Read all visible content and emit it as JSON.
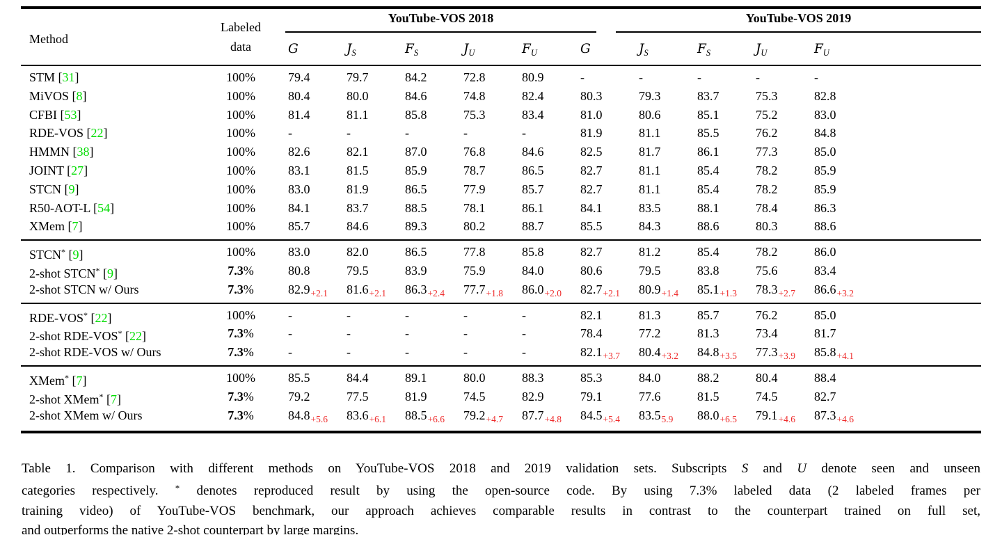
{
  "colors": {
    "citation_green": "#00dd00",
    "delta_red": "#ee2b2b"
  },
  "header": {
    "method": "Method",
    "labeled_line1": "Labeled",
    "labeled_line2": "data",
    "groups": [
      {
        "label": "YouTube-VOS 2018"
      },
      {
        "label": "YouTube-VOS 2019"
      }
    ],
    "metrics": [
      {
        "letter": "G",
        "sub": ""
      },
      {
        "letter": "J",
        "sub": "S"
      },
      {
        "letter": "F",
        "sub": "S"
      },
      {
        "letter": "J",
        "sub": "U"
      },
      {
        "letter": "F",
        "sub": "U"
      },
      {
        "letter": "G",
        "sub": ""
      },
      {
        "letter": "J",
        "sub": "S"
      },
      {
        "letter": "F",
        "sub": "S"
      },
      {
        "letter": "J",
        "sub": "U"
      },
      {
        "letter": "F",
        "sub": "U"
      }
    ]
  },
  "sections": [
    {
      "rows": [
        {
          "name": "STM",
          "star": false,
          "cite": "31",
          "labeled": "100",
          "labeled_bold": false,
          "cells": [
            "79.4",
            "79.7",
            "84.2",
            "72.8",
            "80.9",
            "-",
            "-",
            "-",
            "-",
            "-"
          ]
        },
        {
          "name": "MiVOS",
          "star": false,
          "cite": "8",
          "labeled": "100",
          "labeled_bold": false,
          "cells": [
            "80.4",
            "80.0",
            "84.6",
            "74.8",
            "82.4",
            "80.3",
            "79.3",
            "83.7",
            "75.3",
            "82.8"
          ]
        },
        {
          "name": "CFBI",
          "star": false,
          "cite": "53",
          "labeled": "100",
          "labeled_bold": false,
          "cells": [
            "81.4",
            "81.1",
            "85.8",
            "75.3",
            "83.4",
            "81.0",
            "80.6",
            "85.1",
            "75.2",
            "83.0"
          ]
        },
        {
          "name": "RDE-VOS",
          "star": false,
          "cite": "22",
          "labeled": "100",
          "labeled_bold": false,
          "cells": [
            "-",
            "-",
            "-",
            "-",
            "-",
            "81.9",
            "81.1",
            "85.5",
            "76.2",
            "84.8"
          ]
        },
        {
          "name": "HMMN",
          "star": false,
          "cite": "38",
          "labeled": "100",
          "labeled_bold": false,
          "cells": [
            "82.6",
            "82.1",
            "87.0",
            "76.8",
            "84.6",
            "82.5",
            "81.7",
            "86.1",
            "77.3",
            "85.0"
          ]
        },
        {
          "name": "JOINT",
          "star": false,
          "cite": "27",
          "labeled": "100",
          "labeled_bold": false,
          "cells": [
            "83.1",
            "81.5",
            "85.9",
            "78.7",
            "86.5",
            "82.7",
            "81.1",
            "85.4",
            "78.2",
            "85.9"
          ]
        },
        {
          "name": "STCN",
          "star": false,
          "cite": "9",
          "labeled": "100",
          "labeled_bold": false,
          "cells": [
            "83.0",
            "81.9",
            "86.5",
            "77.9",
            "85.7",
            "82.7",
            "81.1",
            "85.4",
            "78.2",
            "85.9"
          ]
        },
        {
          "name": "R50-AOT-L",
          "star": false,
          "cite": "54",
          "labeled": "100",
          "labeled_bold": false,
          "cells": [
            "84.1",
            "83.7",
            "88.5",
            "78.1",
            "86.1",
            "84.1",
            "83.5",
            "88.1",
            "78.4",
            "86.3"
          ]
        },
        {
          "name": "XMem",
          "star": false,
          "cite": "7",
          "labeled": "100",
          "labeled_bold": false,
          "cells": [
            "85.7",
            "84.6",
            "89.3",
            "80.2",
            "88.7",
            "85.5",
            "84.3",
            "88.6",
            "80.3",
            "88.6"
          ]
        }
      ]
    },
    {
      "rows": [
        {
          "name": "STCN",
          "star": true,
          "cite": "9",
          "labeled": "100",
          "labeled_bold": false,
          "cells": [
            "83.0",
            "82.0",
            "86.5",
            "77.8",
            "85.8",
            "82.7",
            "81.2",
            "85.4",
            "78.2",
            "86.0"
          ]
        },
        {
          "name": "2-shot STCN",
          "star": true,
          "cite": "9",
          "labeled": "7.3",
          "labeled_bold": true,
          "cells": [
            "80.8",
            "79.5",
            "83.9",
            "75.9",
            "84.0",
            "80.6",
            "79.5",
            "83.8",
            "75.6",
            "83.4"
          ]
        },
        {
          "name": "2-shot STCN w/ Ours",
          "star": false,
          "cite": null,
          "labeled": "7.3",
          "labeled_bold": true,
          "cells": [
            "82.9|+2.1",
            "81.6|+2.1",
            "86.3|+2.4",
            "77.7|+1.8",
            "86.0|+2.0",
            "82.7|+2.1",
            "80.9|+1.4",
            "85.1|+1.3",
            "78.3|+2.7",
            "86.6|+3.2"
          ]
        }
      ]
    },
    {
      "rows": [
        {
          "name": "RDE-VOS",
          "star": true,
          "cite": "22",
          "labeled": "100",
          "labeled_bold": false,
          "cells": [
            "-",
            "-",
            "-",
            "-",
            "-",
            "82.1",
            "81.3",
            "85.7",
            "76.2",
            "85.0"
          ]
        },
        {
          "name": "2-shot RDE-VOS",
          "star": true,
          "cite": "22",
          "labeled": "7.3",
          "labeled_bold": true,
          "cells": [
            "-",
            "-",
            "-",
            "-",
            "-",
            "78.4",
            "77.2",
            "81.3",
            "73.4",
            "81.7"
          ]
        },
        {
          "name": "2-shot RDE-VOS w/ Ours",
          "star": false,
          "cite": null,
          "labeled": "7.3",
          "labeled_bold": true,
          "cells": [
            "-",
            "-",
            "-",
            "-",
            "-",
            "82.1|+3.7",
            "80.4|+3.2",
            "84.8|+3.5",
            "77.3|+3.9",
            "85.8|+4.1"
          ]
        }
      ]
    },
    {
      "rows": [
        {
          "name": "XMem",
          "star": true,
          "cite": "7",
          "labeled": "100",
          "labeled_bold": false,
          "cells": [
            "85.5",
            "84.4",
            "89.1",
            "80.0",
            "88.3",
            "85.3",
            "84.0",
            "88.2",
            "80.4",
            "88.4"
          ]
        },
        {
          "name": "2-shot XMem",
          "star": true,
          "cite": "7",
          "labeled": "7.3",
          "labeled_bold": true,
          "cells": [
            "79.2",
            "77.5",
            "81.9",
            "74.5",
            "82.9",
            "79.1",
            "77.6",
            "81.5",
            "74.5",
            "82.7"
          ]
        },
        {
          "name": "2-shot XMem w/ Ours",
          "star": false,
          "cite": null,
          "labeled": "7.3",
          "labeled_bold": true,
          "cells": [
            "84.8|+5.6",
            "83.6|+6.1",
            "88.5|+6.6",
            "79.2|+4.7",
            "87.7|+4.8",
            "84.5|+5.4",
            "83.5|5.9",
            "88.0|+6.5",
            "79.1|+4.6",
            "87.3|+4.6"
          ]
        }
      ]
    }
  ],
  "caption": {
    "lines": [
      {
        "justify": true,
        "segments": [
          {
            "t": "Table 1. Comparison with different methods on YouTube-VOS 2018 and 2019 validation sets. Subscripts "
          },
          {
            "t": "S",
            "style": "i"
          },
          {
            "t": " and "
          },
          {
            "t": "U",
            "style": "i"
          },
          {
            "t": " denote seen and unseen"
          }
        ]
      },
      {
        "justify": true,
        "segments": [
          {
            "t": "categories respectively. "
          },
          {
            "t": "*",
            "style": "sup"
          },
          {
            "t": " denotes reproduced result by using the open-source code. By using 7.3% labeled data (2 labeled frames per"
          }
        ]
      },
      {
        "justify": true,
        "segments": [
          {
            "t": "training video) of YouTube-VOS benchmark, our approach achieves comparable results in contrast to the counterpart trained on full set,"
          }
        ]
      },
      {
        "justify": false,
        "segments": [
          {
            "t": "and outperforms the native 2-shot counterpart by large margins."
          }
        ]
      }
    ]
  }
}
